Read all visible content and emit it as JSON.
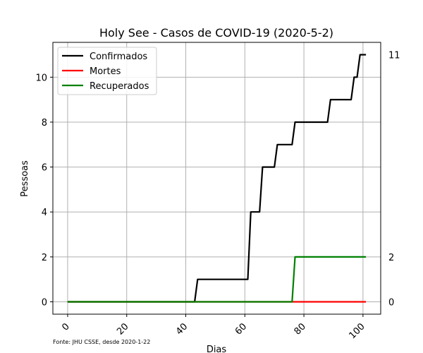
{
  "chart_data": {
    "type": "line",
    "title": "Holy See - Casos de COVID-19 (2020-5-2)",
    "xlabel": "Dias",
    "ylabel": "Pessoas",
    "xlim": [
      -5,
      106
    ],
    "ylim": [
      -0.55,
      11.55
    ],
    "xticks": [
      0,
      20,
      40,
      60,
      80,
      100
    ],
    "yticks": [
      0,
      2,
      4,
      6,
      8,
      10
    ],
    "grid": true,
    "legend": "top-left",
    "source_note": "Fonte: JHU CSSE, desde 2020-1-22",
    "end_labels": [
      "11",
      "2",
      "0"
    ],
    "series": [
      {
        "name": "Confirmados",
        "color": "#000000",
        "points": [
          [
            0,
            0
          ],
          [
            43,
            0
          ],
          [
            44,
            1
          ],
          [
            61,
            1
          ],
          [
            62,
            4
          ],
          [
            65,
            4
          ],
          [
            66,
            6
          ],
          [
            70,
            6
          ],
          [
            71,
            7
          ],
          [
            76,
            7
          ],
          [
            77,
            8
          ],
          [
            88,
            8
          ],
          [
            89,
            9
          ],
          [
            96,
            9
          ],
          [
            97,
            10
          ],
          [
            98,
            10
          ],
          [
            99,
            11
          ],
          [
            101,
            11
          ]
        ]
      },
      {
        "name": "Mortes",
        "color": "#ff0000",
        "points": [
          [
            0,
            0
          ],
          [
            101,
            0
          ]
        ]
      },
      {
        "name": "Recuperados",
        "color": "#008000",
        "points": [
          [
            0,
            0
          ],
          [
            76,
            0
          ],
          [
            77,
            2
          ],
          [
            101,
            2
          ]
        ]
      }
    ]
  }
}
